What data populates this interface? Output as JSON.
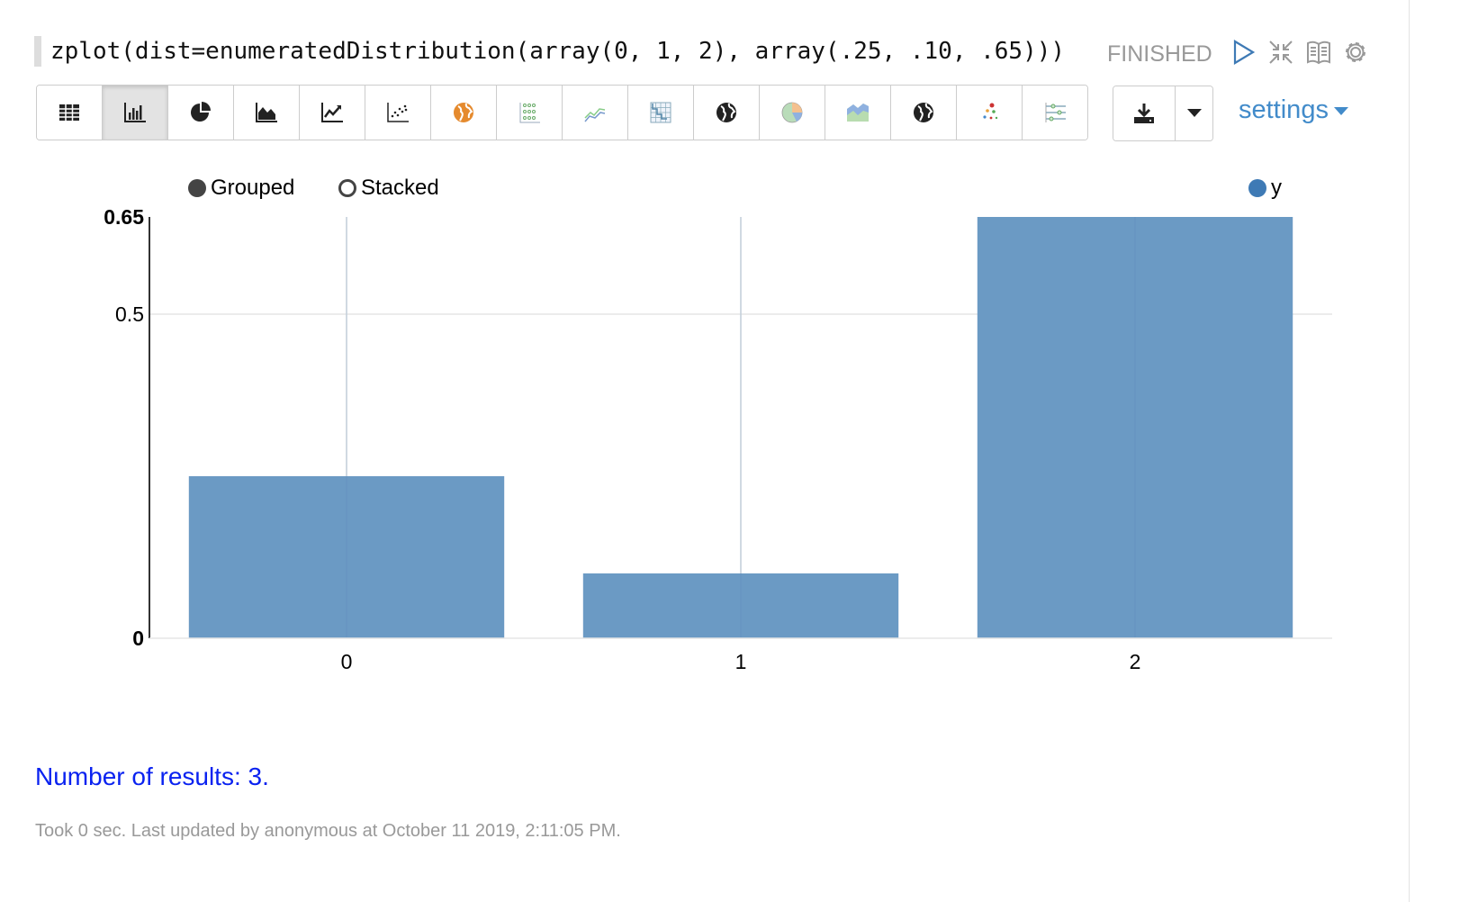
{
  "paragraph": {
    "code": "zplot(dist=enumeratedDistribution(array(0, 1, 2), array(.25, .10, .65)))",
    "status": "FINISHED",
    "controls": [
      "run-icon",
      "collapse-icon",
      "book-icon",
      "gear-icon"
    ]
  },
  "toolbar": {
    "buttons": [
      {
        "name": "table",
        "icon": "table-icon"
      },
      {
        "name": "bar-chart",
        "icon": "bar-chart-icon",
        "active": true
      },
      {
        "name": "pie-chart",
        "icon": "pie-chart-icon"
      },
      {
        "name": "area-chart",
        "icon": "area-chart-icon"
      },
      {
        "name": "line-chart",
        "icon": "line-chart-icon"
      },
      {
        "name": "scatter-chart",
        "icon": "scatter-chart-icon"
      },
      {
        "name": "map-orange",
        "icon": "globe-icon"
      },
      {
        "name": "dot-matrix",
        "icon": "dot-matrix-icon"
      },
      {
        "name": "multi-line",
        "icon": "multi-line-icon"
      },
      {
        "name": "heatmap",
        "icon": "heatmap-icon"
      },
      {
        "name": "globe",
        "icon": "globe-icon"
      },
      {
        "name": "pie-color",
        "icon": "pie-color-icon"
      },
      {
        "name": "stream",
        "icon": "stream-icon"
      },
      {
        "name": "globe-2",
        "icon": "globe-icon"
      },
      {
        "name": "bubble",
        "icon": "bubble-icon"
      },
      {
        "name": "slider",
        "icon": "slider-icon"
      }
    ],
    "download_icon": "download-icon",
    "dropdown_icon": "caret-down-icon",
    "settings_label": "settings"
  },
  "chart_data": {
    "type": "bar",
    "mode_options": [
      {
        "label": "Grouped",
        "selected": true
      },
      {
        "label": "Stacked",
        "selected": false
      }
    ],
    "categories": [
      "0",
      "1",
      "2"
    ],
    "series": [
      {
        "name": "y",
        "values": [
          0.25,
          0.1,
          0.65
        ],
        "color": "#6b9ac4"
      }
    ],
    "legend_color": "#3e7ab5",
    "legend_placement": "top-right",
    "ylim": [
      0,
      0.65
    ],
    "yticks": [
      "0",
      "0.5",
      "0.65"
    ],
    "grid": true
  },
  "footer": {
    "result_count": "Number of results: 3.",
    "took": "Took 0 sec. Last updated by anonymous at October 11 2019, 2:11:05 PM."
  }
}
